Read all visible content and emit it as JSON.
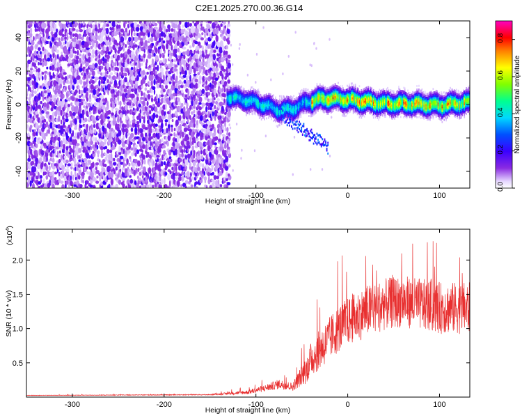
{
  "title": "C2E1.2025.270.00.36.G14",
  "chart_data": [
    {
      "type": "heatmap",
      "name": "spectrogram",
      "xlabel": "Height of straight line (km)",
      "ylabel": "Frequency (Hz)",
      "xlim": [
        -350,
        133
      ],
      "ylim": [
        -50,
        50
      ],
      "xticks": [
        -300,
        -200,
        -100,
        0,
        100
      ],
      "yticks": [
        -40,
        -20,
        0,
        20,
        40
      ],
      "noise_region_x": [
        -350,
        -130
      ],
      "signal_band": {
        "x_start": -132,
        "x_end": 133,
        "center_frequency_hz": [
          [
            -130,
            5
          ],
          [
            -110,
            3
          ],
          [
            -90,
            0
          ],
          [
            -75,
            -3
          ],
          [
            -60,
            -2
          ],
          [
            -45,
            2
          ],
          [
            -30,
            4
          ],
          [
            -10,
            4
          ],
          [
            10,
            3
          ],
          [
            40,
            1
          ],
          [
            70,
            1
          ],
          [
            100,
            0
          ],
          [
            133,
            2
          ]
        ],
        "half_width_hz": 5
      },
      "colorbar": {
        "label": "Normalized spectral amplitude",
        "range": [
          0,
          0.9
        ],
        "ticks": [
          "0.0",
          "0.2",
          "0.4",
          "0.6",
          "0.8"
        ],
        "tick_values": [
          0.0,
          0.2,
          0.4,
          0.6,
          0.8
        ]
      }
    },
    {
      "type": "line",
      "name": "snr",
      "xlabel": "Height of straight line (km)",
      "ylabel": "SNR (10 * v/v)",
      "scale_label": "(x10",
      "scale_exp": "4",
      "scale_close": ")",
      "xlim": [
        -350,
        133
      ],
      "ylim": [
        0,
        24500
      ],
      "xticks": [
        -300,
        -200,
        -100,
        0,
        100
      ],
      "yticks": [
        5000,
        10000,
        15000,
        20000
      ],
      "ytick_labels": [
        "0.5",
        "1.0",
        "1.5",
        "2.0"
      ],
      "color": "#e83030",
      "series": [
        {
          "name": "SNR",
          "x": [
            -350,
            -150,
            -110,
            -90,
            -75,
            -60,
            -45,
            -40,
            -30,
            -20,
            -10,
            0,
            20,
            40,
            60,
            80,
            100,
            120,
            133
          ],
          "value": [
            250,
            350,
            700,
            1300,
            1900,
            1500,
            4000,
            5500,
            7000,
            8500,
            10000,
            11000,
            12500,
            13500,
            14000,
            13500,
            13000,
            13000,
            13000
          ],
          "noise": [
            30,
            60,
            300,
            500,
            700,
            600,
            2000,
            2500,
            3000,
            3200,
            3500,
            3500,
            3800,
            3800,
            3800,
            3800,
            3800,
            3800,
            3800
          ]
        }
      ]
    }
  ]
}
